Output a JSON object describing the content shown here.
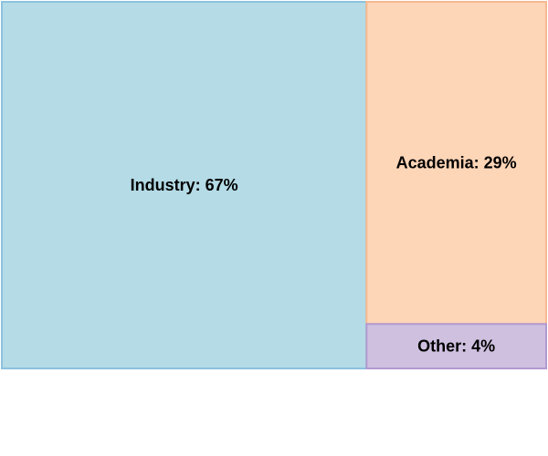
{
  "chart_data": {
    "type": "treemap",
    "title": "",
    "items": [
      {
        "label": "Industry: 67%",
        "name": "Industry",
        "value": 67,
        "fill": "#b4dbe6",
        "stroke": "#8cc3de"
      },
      {
        "label": "Academia: 29%",
        "name": "Academia",
        "value": 29,
        "fill": "#fdd5b7",
        "stroke": "#f6b98f"
      },
      {
        "label": "Other: 4%",
        "name": "Other",
        "value": 4,
        "fill": "#cfc0e0",
        "stroke": "#b09ad0"
      }
    ]
  }
}
